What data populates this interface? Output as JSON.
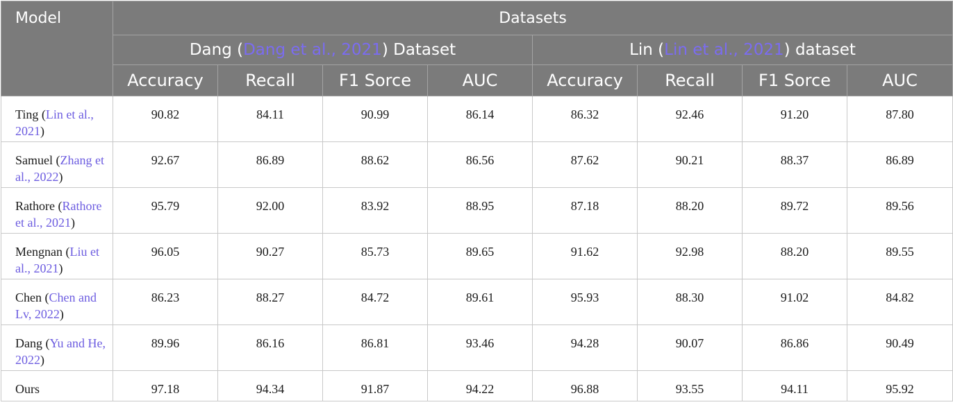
{
  "header": {
    "model_label": "Model",
    "datasets_label": "Datasets",
    "groups": [
      {
        "name": "Dang",
        "open": " (",
        "cite": "Dang et al., 2021",
        "close": ") Dataset"
      },
      {
        "name": "Lin",
        "open": " (",
        "cite": "Lin et al., 2021",
        "close": ") dataset"
      }
    ],
    "metrics": [
      "Accuracy",
      "Recall",
      "F1 Sorce",
      "AUC",
      "Accuracy",
      "Recall",
      "F1 Sorce",
      "AUC"
    ]
  },
  "rows": [
    {
      "model": "Ting",
      "open": " (",
      "cite": "Lin et al., 2021",
      "close": ")",
      "values": [
        "90.82",
        "84.11",
        "90.99",
        "86.14",
        "86.32",
        "92.46",
        "91.20",
        "87.80"
      ]
    },
    {
      "model": "Samuel",
      "open": " (",
      "cite": "Zhang et al., 2022",
      "close": ")",
      "values": [
        "92.67",
        "86.89",
        "88.62",
        "86.56",
        "87.62",
        "90.21",
        "88.37",
        "86.89"
      ]
    },
    {
      "model": "Rathore",
      "open": " (",
      "cite": "Rathore et al., 2021",
      "close": ")",
      "values": [
        "95.79",
        "92.00",
        "83.92",
        "88.95",
        "87.18",
        "88.20",
        "89.72",
        "89.56"
      ]
    },
    {
      "model": "Mengnan",
      "open": " (",
      "cite": "Liu et al., 2021",
      "close": ")",
      "values": [
        "96.05",
        "90.27",
        "85.73",
        "89.65",
        "91.62",
        "92.98",
        "88.20",
        "89.55"
      ]
    },
    {
      "model": "Chen",
      "open": " (",
      "cite": "Chen and Lv, 2022",
      "close": ")",
      "values": [
        "86.23",
        "88.27",
        "84.72",
        "89.61",
        "95.93",
        "88.30",
        "91.02",
        "84.82"
      ]
    },
    {
      "model": "Dang",
      "open": " (",
      "cite": "Yu and He, 2022",
      "close": ")",
      "values": [
        "89.96",
        "86.16",
        "86.81",
        "93.46",
        "94.28",
        "90.07",
        "86.86",
        "90.49"
      ]
    },
    {
      "model": "Ours",
      "open": "",
      "cite": "",
      "close": "",
      "values": [
        "97.18",
        "94.34",
        "91.87",
        "94.22",
        "96.88",
        "93.55",
        "94.11",
        "95.92"
      ]
    }
  ]
}
